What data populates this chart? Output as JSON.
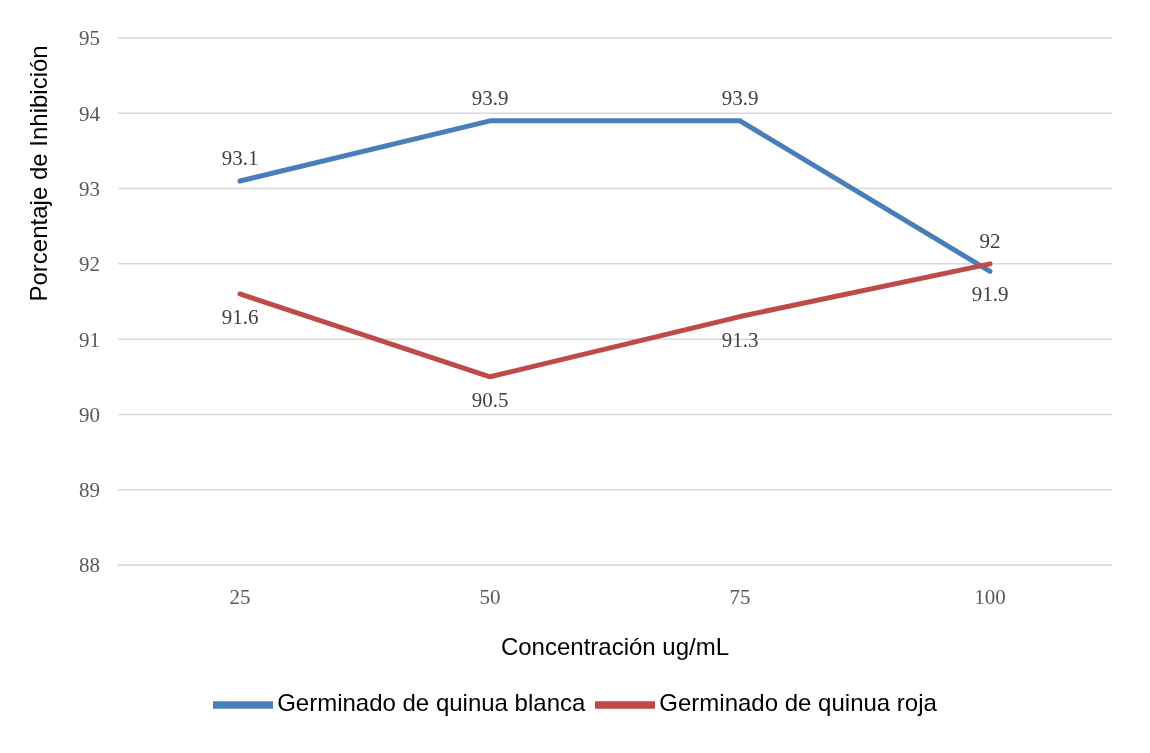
{
  "chart_data": {
    "type": "line",
    "xlabel": "Concentración ug/mL",
    "ylabel": "Porcentaje de Inhibición",
    "categories": [
      "25",
      "50",
      "75",
      "100"
    ],
    "series": [
      {
        "name": "Germinado de quinua blanca",
        "color": "#4a7ebb",
        "values": [
          93.1,
          93.9,
          93.9,
          91.9
        ]
      },
      {
        "name": "Germinado de quinua roja",
        "color": "#be4b48",
        "values": [
          91.6,
          90.5,
          91.3,
          92
        ]
      }
    ],
    "ylim": [
      88,
      95
    ],
    "yticks": [
      88,
      89,
      90,
      91,
      92,
      93,
      94,
      95
    ],
    "grid": "y",
    "legend": "bottom",
    "data_labels": true,
    "marker": "none",
    "line_style": "solid"
  }
}
